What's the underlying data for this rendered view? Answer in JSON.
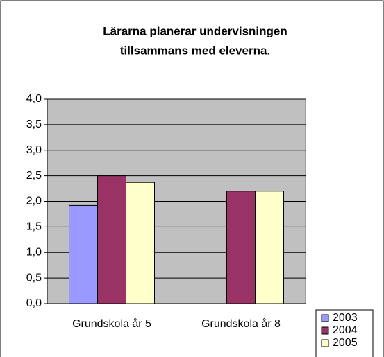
{
  "chart_data": {
    "type": "bar",
    "title": [
      "Lärarna planerar undervisningen",
      "tillsammans med eleverna."
    ],
    "categories": [
      "Grundskola år 5",
      "Grundskola år 8"
    ],
    "series": [
      {
        "name": "2003",
        "color": "#9999ff",
        "values": [
          1.92,
          null
        ]
      },
      {
        "name": "2004",
        "color": "#993366",
        "values": [
          2.5,
          2.2
        ]
      },
      {
        "name": "2005",
        "color": "#ffffcc",
        "values": [
          2.37,
          2.2
        ]
      }
    ],
    "ylim": [
      0,
      4
    ],
    "yticks": [
      {
        "value": 0,
        "label": "0,0"
      },
      {
        "value": 0.5,
        "label": "0,5"
      },
      {
        "value": 1,
        "label": "1,0"
      },
      {
        "value": 1.5,
        "label": "1,5"
      },
      {
        "value": 2,
        "label": "2,0"
      },
      {
        "value": 2.5,
        "label": "2,5"
      },
      {
        "value": 3,
        "label": "3,0"
      },
      {
        "value": 3.5,
        "label": "3,5"
      },
      {
        "value": 4,
        "label": "4,0"
      }
    ],
    "grid": true,
    "plot_background": "#c0c0c0",
    "legend": "bottom-right"
  }
}
